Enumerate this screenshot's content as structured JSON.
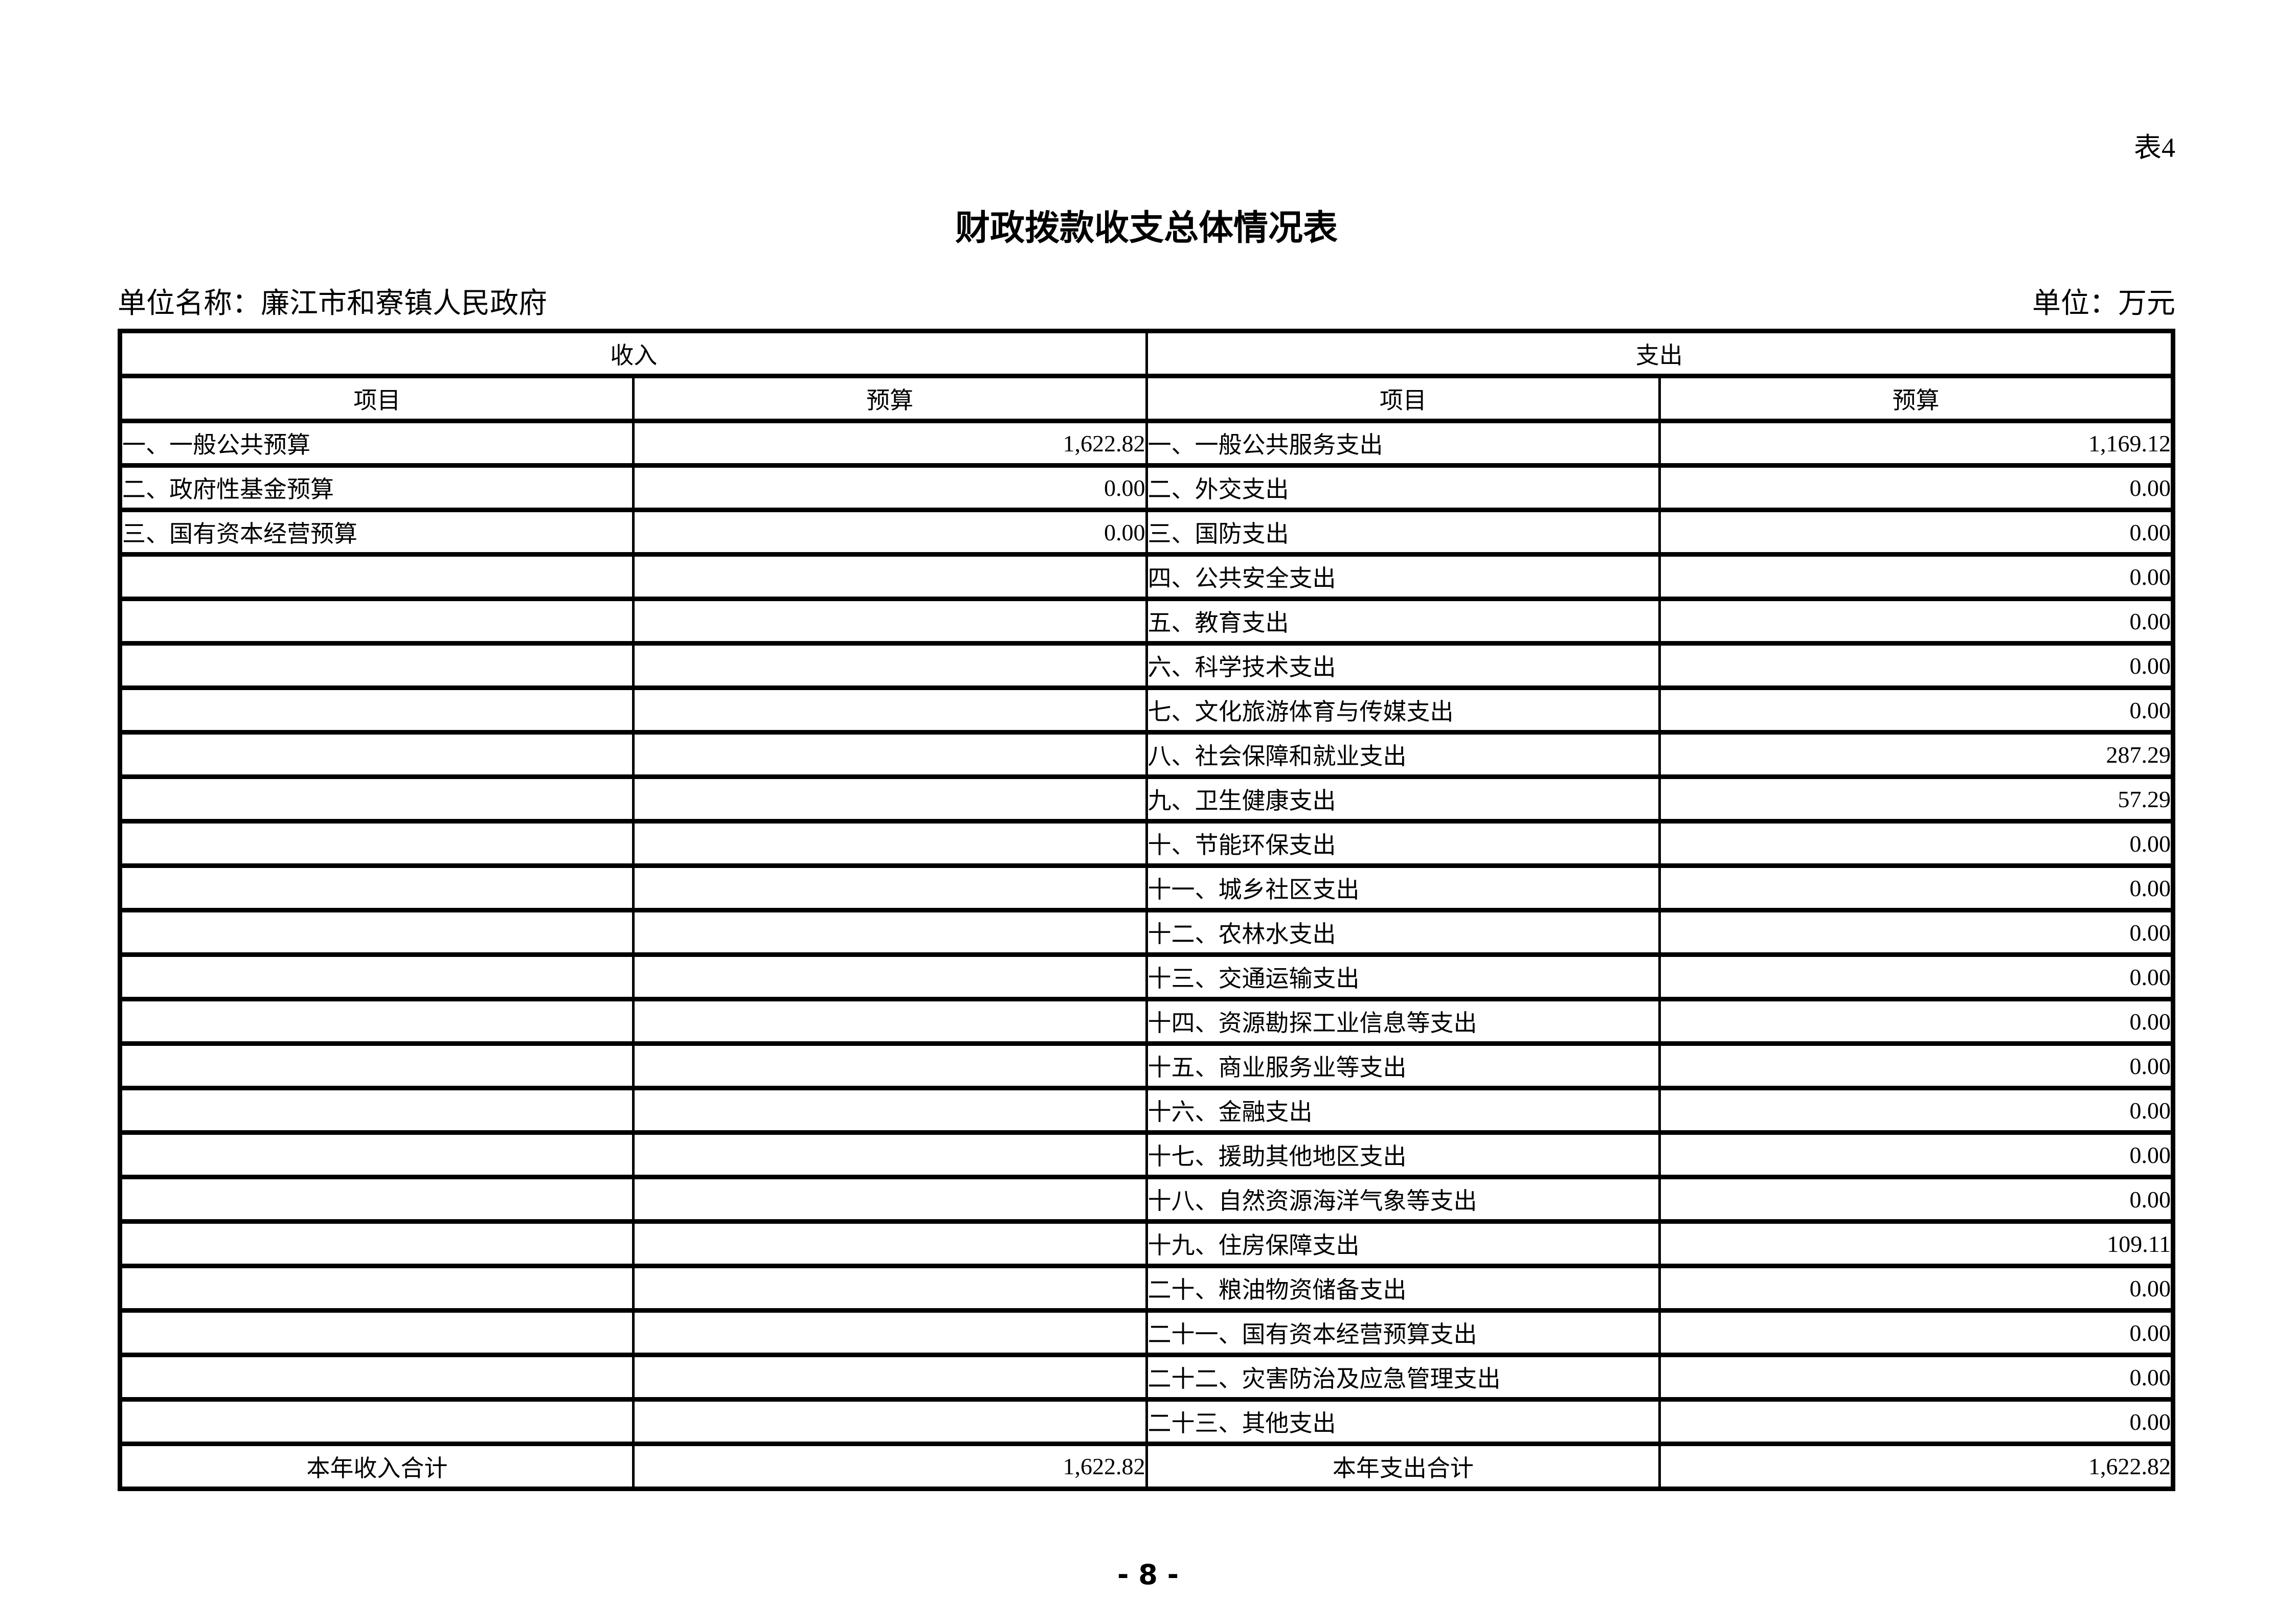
{
  "page": {
    "corner_label": "表4",
    "title": "财政拨款收支总体情况表",
    "unit_name": "单位名称：廉江市和寮镇人民政府",
    "unit": "单位：万元",
    "page_number": "- 8 -"
  },
  "table": {
    "section_headers": {
      "income": "收入",
      "expense": "支出"
    },
    "column_headers": {
      "item": "项目",
      "budget": "预算"
    },
    "income_rows": [
      {
        "item": "一、一般公共预算",
        "budget": "1,622.82"
      },
      {
        "item": "二、政府性基金预算",
        "budget": "0.00"
      },
      {
        "item": "三、国有资本经营预算",
        "budget": "0.00"
      }
    ],
    "expense_rows": [
      {
        "item": "一、一般公共服务支出",
        "budget": "1,169.12"
      },
      {
        "item": "二、外交支出",
        "budget": "0.00"
      },
      {
        "item": "三、国防支出",
        "budget": "0.00"
      },
      {
        "item": "四、公共安全支出",
        "budget": "0.00"
      },
      {
        "item": "五、教育支出",
        "budget": "0.00"
      },
      {
        "item": "六、科学技术支出",
        "budget": "0.00"
      },
      {
        "item": "七、文化旅游体育与传媒支出",
        "budget": "0.00"
      },
      {
        "item": "八、社会保障和就业支出",
        "budget": "287.29"
      },
      {
        "item": "九、卫生健康支出",
        "budget": "57.29"
      },
      {
        "item": "十、节能环保支出",
        "budget": "0.00"
      },
      {
        "item": "十一、城乡社区支出",
        "budget": "0.00"
      },
      {
        "item": "十二、农林水支出",
        "budget": "0.00"
      },
      {
        "item": "十三、交通运输支出",
        "budget": "0.00"
      },
      {
        "item": "十四、资源勘探工业信息等支出",
        "budget": "0.00"
      },
      {
        "item": "十五、商业服务业等支出",
        "budget": "0.00"
      },
      {
        "item": "十六、金融支出",
        "budget": "0.00"
      },
      {
        "item": "十七、援助其他地区支出",
        "budget": "0.00"
      },
      {
        "item": "十八、自然资源海洋气象等支出",
        "budget": "0.00"
      },
      {
        "item": "十九、住房保障支出",
        "budget": "109.11"
      },
      {
        "item": "二十、粮油物资储备支出",
        "budget": "0.00"
      },
      {
        "item": "二十一、国有资本经营预算支出",
        "budget": "0.00"
      },
      {
        "item": "二十二、灾害防治及应急管理支出",
        "budget": "0.00"
      },
      {
        "item": "二十三、其他支出",
        "budget": "0.00"
      }
    ],
    "totals": {
      "income_label": "本年收入合计",
      "income_value": "1,622.82",
      "expense_label": "本年支出合计",
      "expense_value": "1,622.82"
    }
  }
}
